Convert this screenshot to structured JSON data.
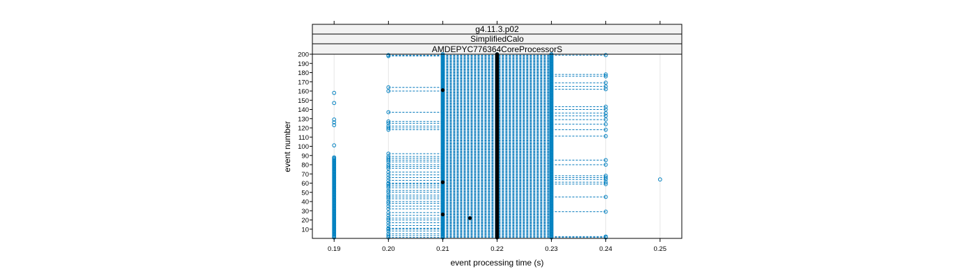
{
  "chart_data": {
    "type": "scatter",
    "panel_strips": [
      "g4.11.3.p02",
      "SimplifiedCalo",
      "AMDEPYC776364CoreProcessorS"
    ],
    "xlabel": "event processing time (s)",
    "ylabel": "event number",
    "xlim": [
      0.186,
      0.254
    ],
    "ylim": [
      0,
      200
    ],
    "xticks": [
      "0.19",
      "0.20",
      "0.21",
      "0.22",
      "0.23",
      "0.24",
      "0.25"
    ],
    "yticks": [
      "10",
      "20",
      "30",
      "40",
      "50",
      "60",
      "70",
      "80",
      "90",
      "100",
      "110",
      "120",
      "130",
      "140",
      "150",
      "160",
      "170",
      "180",
      "190",
      "200"
    ],
    "grid": true,
    "legend": "none",
    "series_color": "#0080c0",
    "median_color": "#000000",
    "series": [
      {
        "time_levels_s": [
          0.19,
          0.2,
          0.21,
          0.22,
          0.23,
          0.24,
          0.25
        ],
        "events_at_0_19": [
          1,
          2,
          3,
          4,
          5,
          6,
          7,
          8,
          9,
          10,
          11,
          12,
          13,
          14,
          15,
          16,
          17,
          18,
          19,
          20,
          21,
          22,
          23,
          24,
          25,
          26,
          27,
          28,
          29,
          30,
          31,
          32,
          33,
          34,
          35,
          36,
          37,
          38,
          39,
          40,
          41,
          42,
          43,
          44,
          45,
          46,
          47,
          48,
          49,
          50,
          51,
          52,
          53,
          54,
          55,
          56,
          57,
          58,
          59,
          60,
          61,
          62,
          63,
          64,
          65,
          66,
          67,
          68,
          69,
          70,
          71,
          72,
          73,
          74,
          75,
          76,
          77,
          78,
          79,
          80,
          81,
          82,
          83,
          84,
          85,
          86,
          87,
          88,
          101,
          123,
          126,
          129,
          147,
          158
        ],
        "events_at_0_20": [
          1,
          3,
          5,
          8,
          10,
          11,
          14,
          17,
          20,
          22,
          25,
          28,
          32,
          35,
          38,
          40,
          43,
          45,
          47,
          50,
          52,
          55,
          57,
          59,
          60,
          63,
          66,
          69,
          72,
          76,
          78,
          80,
          83,
          85,
          87,
          89,
          92,
          118,
          120,
          122,
          125,
          127,
          137,
          160,
          164,
          198,
          199
        ],
        "events_at_0_24": [
          1,
          2,
          29,
          45,
          59,
          61,
          64,
          66,
          68,
          80,
          85,
          111,
          118,
          124,
          129,
          133,
          136,
          140,
          143,
          162,
          165,
          169,
          176,
          178,
          199
        ],
        "events_at_0_25": [
          64
        ]
      }
    ],
    "medians": [
      {
        "x": 0.215,
        "y": 22
      },
      {
        "x": 0.21,
        "y": 26
      },
      {
        "x": 0.21,
        "y": 61
      },
      {
        "x": 0.21,
        "y": 161
      }
    ]
  }
}
